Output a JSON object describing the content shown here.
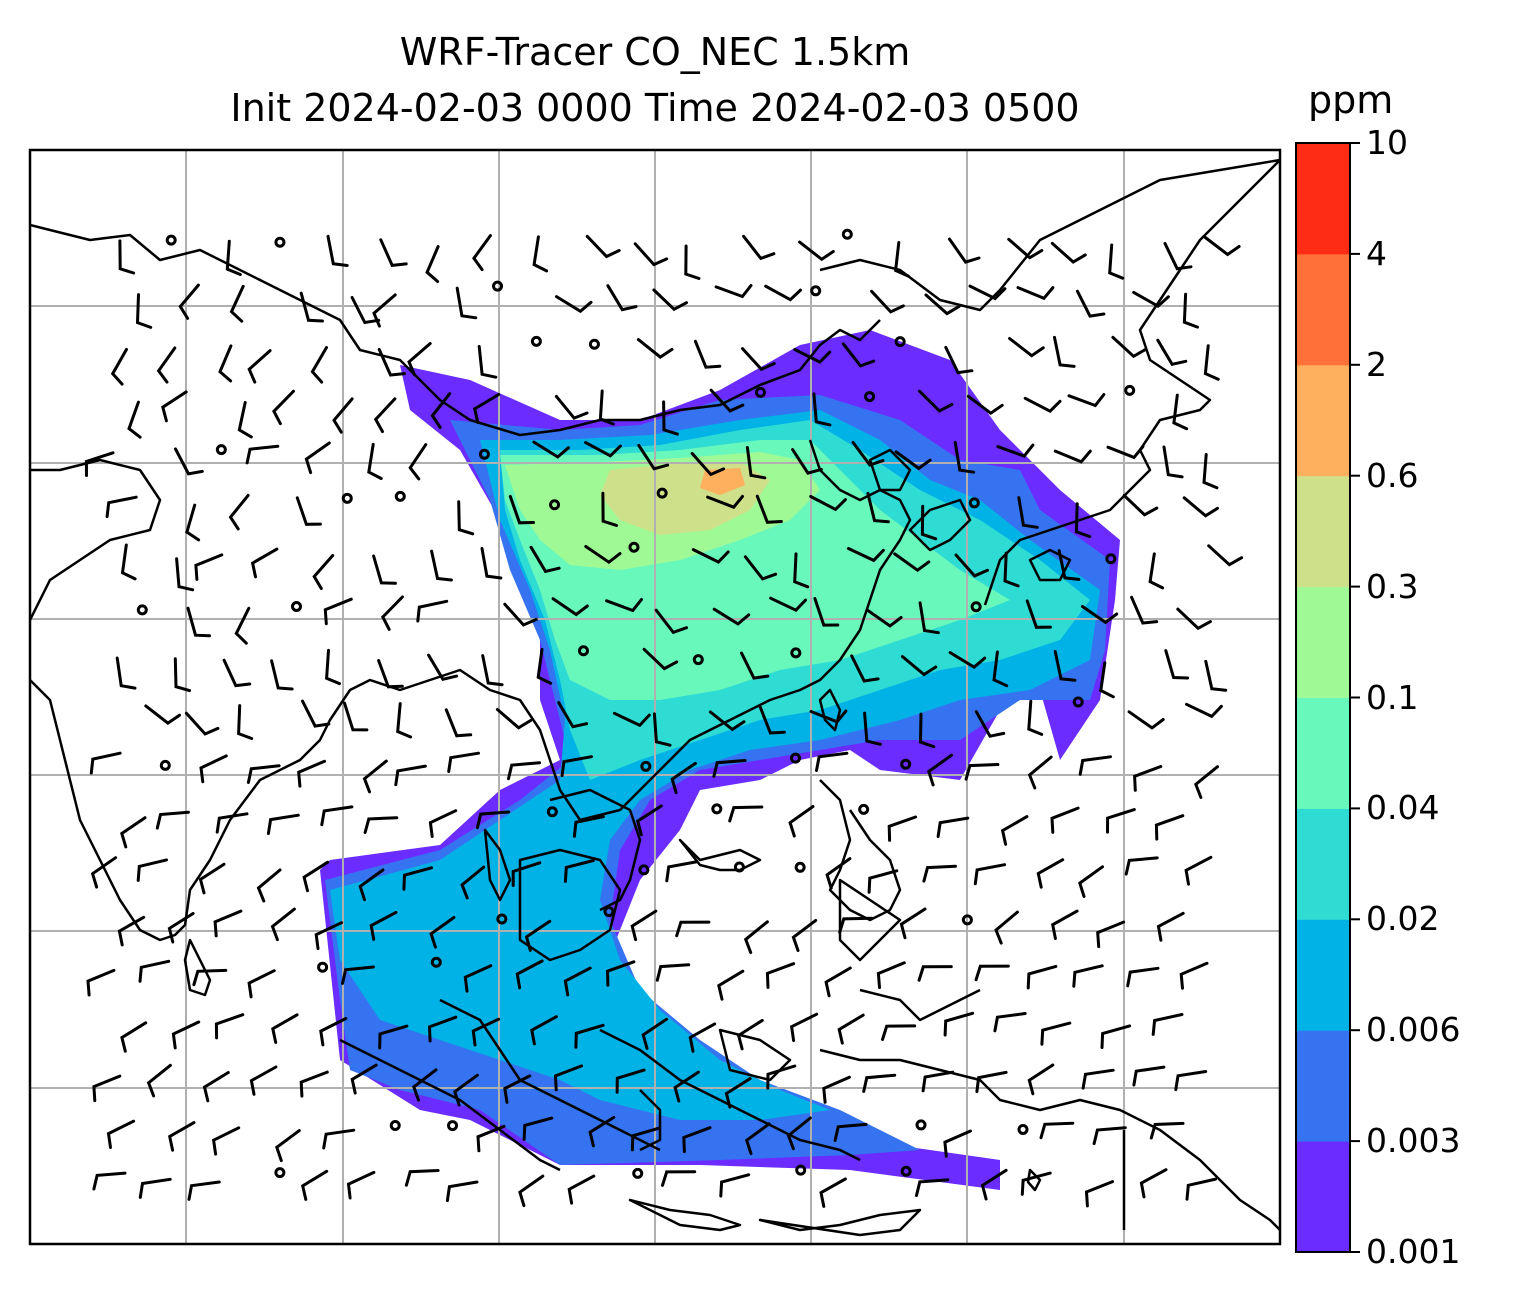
{
  "title_line1": "WRF-Tracer CO_NEC 1.5km",
  "title_line2": "Init 2024-02-03 0000 Time 2024-02-03 0500",
  "colorbar": {
    "units": "ppm",
    "tick_labels": [
      "0.001",
      "0.003",
      "0.006",
      "0.02",
      "0.04",
      "0.1",
      "0.3",
      "0.6",
      "2",
      "4",
      "10"
    ],
    "colors": [
      "#6a2cff",
      "#3673f1",
      "#00b2e6",
      "#2fdcd4",
      "#69f8bb",
      "#9ffa96",
      "#cfe08a",
      "#feb05e",
      "#ff7139",
      "#ff2c15"
    ]
  },
  "map": {
    "gridlines": true,
    "gridline_color": "#b0b0b0",
    "coastline_color": "#000000",
    "wind_barbs": true
  }
}
